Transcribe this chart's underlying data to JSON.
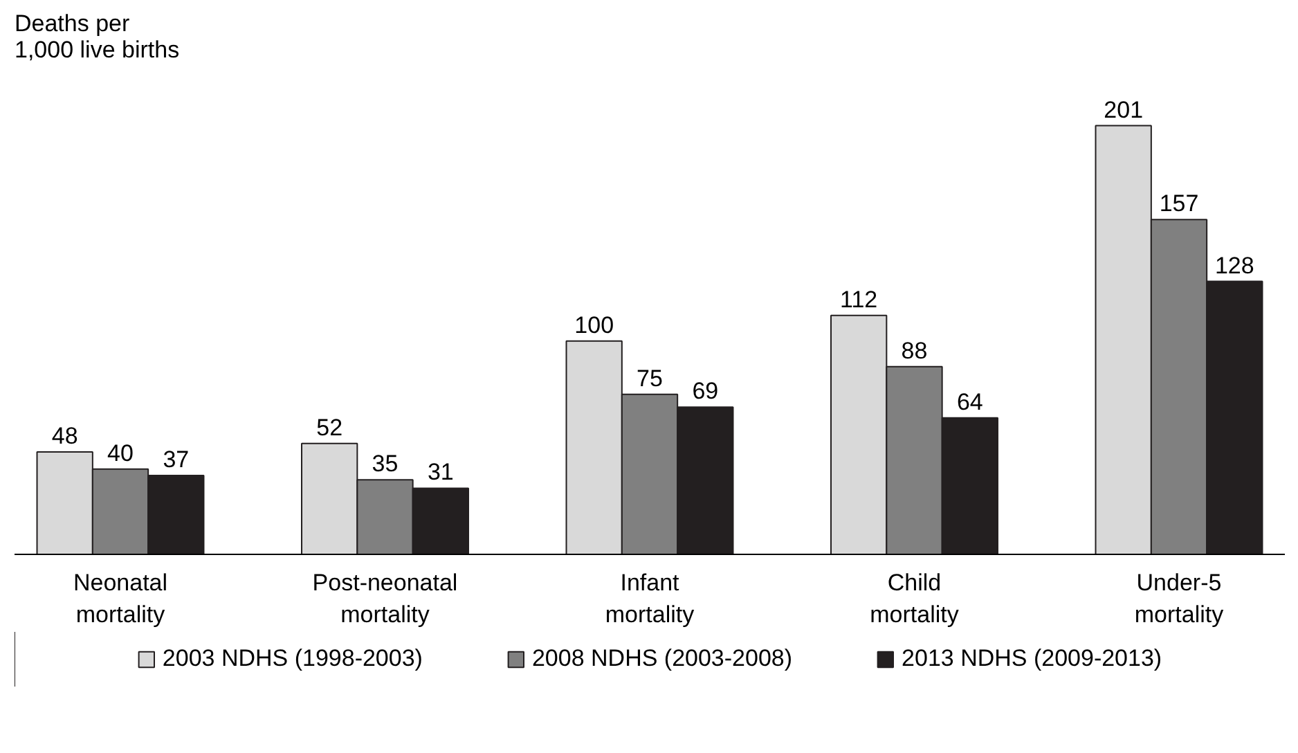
{
  "chart_data": {
    "type": "bar",
    "ylabel": "Deaths per\n1,000 live births",
    "categories": [
      "Neonatal\nmortality",
      "Post-neonatal\nmortality",
      "Infant\nmortality",
      "Child\nmortality",
      "Under-5\nmortality"
    ],
    "series": [
      {
        "name": "2003 NDHS (1998-2003)",
        "color": "#d9d9d9",
        "values": [
          48,
          52,
          100,
          112,
          201
        ]
      },
      {
        "name": "2008 NDHS (2003-2008)",
        "color": "#808080",
        "values": [
          40,
          35,
          75,
          88,
          157
        ]
      },
      {
        "name": "2013 NDHS (2009-2013)",
        "color": "#231f20",
        "values": [
          37,
          31,
          69,
          64,
          128
        ]
      }
    ],
    "data_labels": true,
    "grid": false,
    "legend": "bottom",
    "tick_labels": "x"
  }
}
